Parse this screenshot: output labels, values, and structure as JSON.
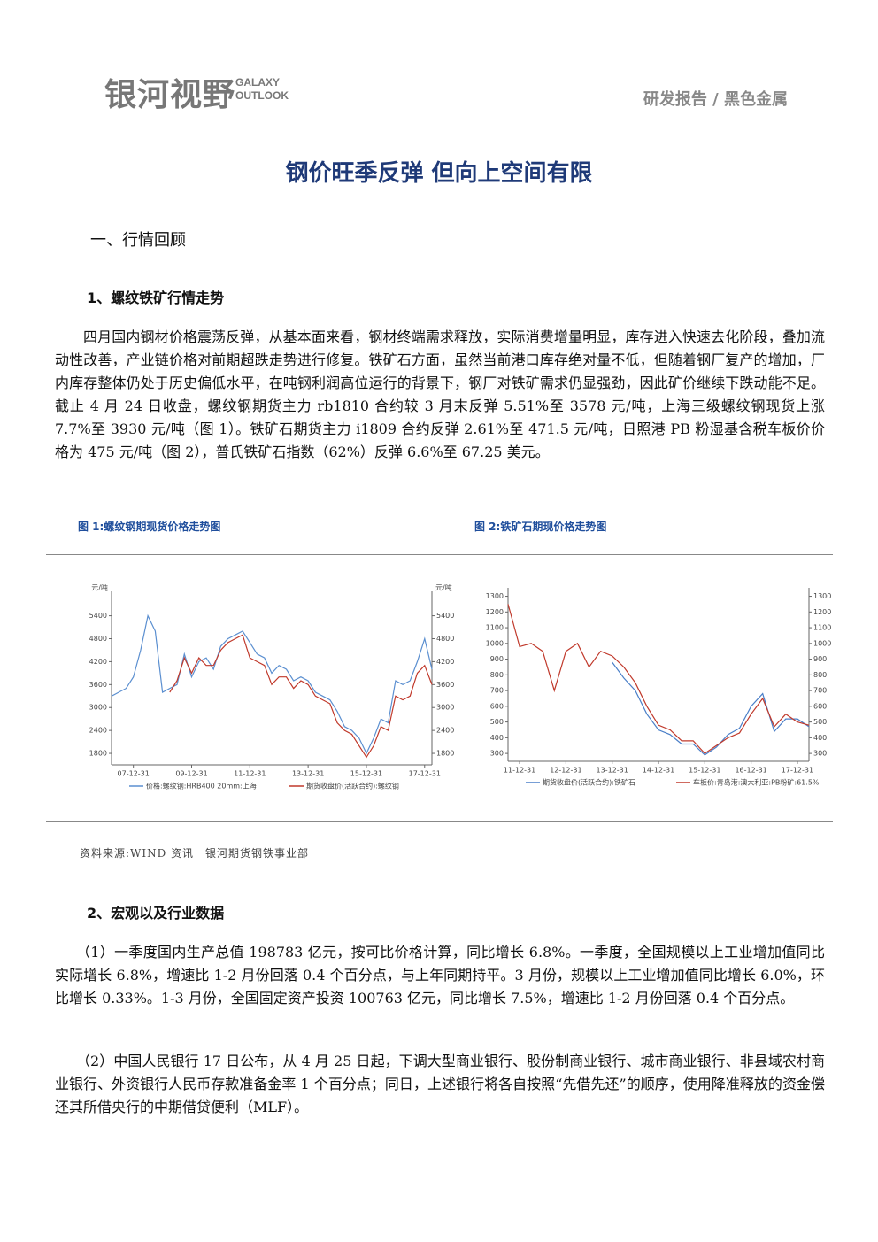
{
  "header": {
    "brand": "银河视野",
    "brand_en_1": "GALAXY",
    "brand_en_2": "OUTLOOK",
    "category": "研发报告 / 黑色金属"
  },
  "title": "钢价旺季反弹 但向上空间有限",
  "section_heading": "一、行情回顾",
  "subsections": [
    {
      "heading": "1、螺纹铁矿行情走势",
      "paragraphs": [
        "四月国内钢材价格震荡反弹，从基本面来看，钢材终端需求释放，实际消费增量明显，库存进入快速去化阶段，叠加流动性改善，产业链价格对前期超跌走势进行修复。铁矿石方面，虽然当前港口库存绝对量不低，但随着钢厂复产的增加，厂内库存整体仍处于历史偏低水平，在吨钢利润高位运行的背景下，钢厂对铁矿需求仍显强劲，因此矿价继续下跌动能不足。截止 4 月 24 日收盘，螺纹钢期货主力 rb1810 合约较 3 月末反弹 5.51%至 3578 元/吨，上海三级螺纹钢现货上涨 7.7%至 3930 元/吨（图 1）。铁矿石期货主力 i1809 合约反弹 2.61%至 471.5 元/吨，日照港 PB 粉湿基含税车板价价格为 475 元/吨（图 2），普氏铁矿石指数（62%）反弹 6.6%至 67.25 美元。"
      ]
    },
    {
      "heading": "2、宏观以及行业数据",
      "paragraphs": [
        "（1）一季度国内生产总值 198783 亿元，按可比价格计算，同比增长 6.8%。一季度，全国规模以上工业增加值同比实际增长 6.8%，增速比 1-2 月份回落 0.4 个百分点，与上年同期持平。3 月份，规模以上工业增加值同比增长 6.0%，环比增长 0.33%。1-3 月份，全国固定资产投资 100763 亿元，同比增长 7.5%，增速比 1-2 月份回落 0.4 个百分点。",
        "（2）中国人民银行 17 日公布，从 4 月 25 日起，下调大型商业银行、股份制商业银行、城市商业银行、非县域农村商业银行、外资银行人民币存款准备金率 1 个百分点；同日，上述银行将各自按照“先借先还”的顺序，使用降准释放的资金偿还其所借央行的中期借贷便利（MLF）。"
      ]
    }
  ],
  "figures": [
    {
      "caption": "图 1:螺纹钢期现货价格走势图"
    },
    {
      "caption": "图 2:铁矿石期现价格走势图"
    }
  ],
  "source": "资料来源:WIND 资讯　银河期货钢铁事业部",
  "chart_data": [
    {
      "type": "line",
      "y_label": "元/吨",
      "y2_label": "元/吨",
      "categories": [
        null,
        null,
        null,
        "07-12-31",
        null,
        null,
        null,
        null,
        null,
        null,
        null,
        "09-12-31",
        null,
        null,
        null,
        null,
        null,
        null,
        null,
        "11-12-31",
        null,
        null,
        null,
        null,
        null,
        null,
        null,
        "13-12-31",
        null,
        null,
        null,
        null,
        null,
        null,
        null,
        "15-12-31",
        null,
        null,
        null,
        null,
        null,
        null,
        null,
        "17-12-31",
        null
      ],
      "series": [
        {
          "name": "价格:螺纹钢:HRB400 20mm:上海",
          "color": "#5b8fd0",
          "values": [
            3300,
            3400,
            3500,
            3800,
            4500,
            5400,
            5000,
            3400,
            3500,
            3600,
            4400,
            3800,
            4200,
            4300,
            4000,
            4600,
            4800,
            4900,
            5000,
            4700,
            4400,
            4300,
            3900,
            4100,
            4000,
            3700,
            3800,
            3700,
            3400,
            3300,
            3200,
            2900,
            2500,
            2400,
            2200,
            1800,
            2200,
            2700,
            2600,
            3700,
            3600,
            3700,
            4200,
            4800,
            4000
          ]
        },
        {
          "name": "期货收盘价(活跃合约):螺纹钢",
          "color": "#c0392b",
          "values": [
            null,
            null,
            null,
            null,
            null,
            null,
            null,
            null,
            3400,
            3700,
            4300,
            3900,
            4300,
            4100,
            4100,
            4500,
            4700,
            4800,
            4900,
            4300,
            4200,
            4100,
            3600,
            3800,
            3800,
            3500,
            3700,
            3600,
            3300,
            3200,
            3100,
            2600,
            2400,
            2300,
            2000,
            1700,
            2000,
            2500,
            2400,
            3300,
            3200,
            3300,
            3900,
            4100,
            3600
          ]
        }
      ],
      "ylim": [
        1500,
        5900
      ],
      "yticks": [
        1800,
        2400,
        3000,
        3600,
        4200,
        4800,
        5400
      ],
      "y2lim": [
        1500,
        5900
      ],
      "y2ticks": [
        1800,
        2400,
        3000,
        3600,
        4200,
        4800,
        5400
      ]
    },
    {
      "type": "line",
      "categories": [
        null,
        "11-12-31",
        null,
        null,
        null,
        "12-12-31",
        null,
        null,
        null,
        "13-12-31",
        null,
        null,
        null,
        "14-12-31",
        null,
        null,
        null,
        "15-12-31",
        null,
        null,
        null,
        "16-12-31",
        null,
        null,
        null,
        "17-12-31",
        null
      ],
      "series": [
        {
          "name": "期货收盘价(活跃合约):铁矿石",
          "color": "#4a7fc8",
          "values": [
            null,
            null,
            null,
            null,
            null,
            null,
            null,
            null,
            null,
            880,
            780,
            700,
            550,
            450,
            420,
            360,
            360,
            290,
            340,
            420,
            460,
            600,
            680,
            440,
            520,
            520,
            470
          ]
        },
        {
          "name": "车板价:青岛港:澳大利亚:PB粉矿:61.5%",
          "color": "#c0392b",
          "values": [
            1250,
            980,
            1000,
            950,
            700,
            950,
            1000,
            850,
            950,
            920,
            850,
            750,
            600,
            480,
            450,
            380,
            380,
            300,
            350,
            400,
            430,
            550,
            650,
            470,
            550,
            500,
            480
          ]
        }
      ],
      "ylim": [
        250,
        1320
      ],
      "yticks": [
        300,
        400,
        500,
        600,
        700,
        800,
        900,
        1000,
        1100,
        1200,
        1300
      ],
      "y2lim": [
        250,
        1320
      ],
      "y2ticks": [
        300,
        400,
        500,
        600,
        700,
        800,
        900,
        1000,
        1100,
        1200,
        1300
      ]
    }
  ]
}
